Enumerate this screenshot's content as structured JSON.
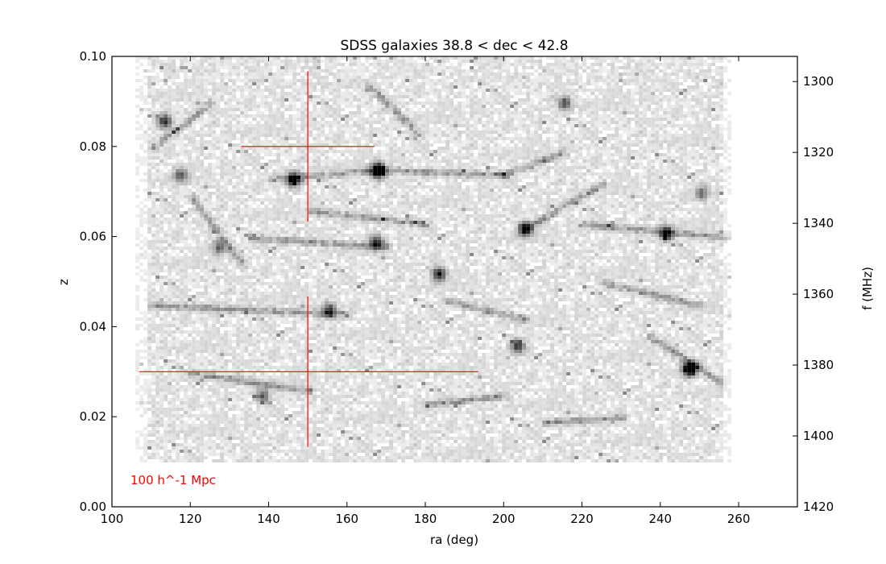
{
  "chart_data": {
    "type": "heatmap",
    "title": "SDSS galaxies 38.8 < dec < 42.8",
    "xlabel": "ra (deg)",
    "ylabel": "z",
    "y2label": "f (MHz)",
    "xlim": [
      100,
      275
    ],
    "ylim": [
      0.0,
      0.1
    ],
    "y2lim": [
      1420,
      1292.9
    ],
    "xticks": [
      100,
      120,
      140,
      160,
      180,
      200,
      220,
      240,
      260
    ],
    "yticks": [
      0.0,
      0.02,
      0.04,
      0.06,
      0.08,
      0.1
    ],
    "ytick_labels": [
      "0.00",
      "0.02",
      "0.04",
      "0.06",
      "0.08",
      "0.10"
    ],
    "y2ticks": [
      1300,
      1320,
      1340,
      1360,
      1380,
      1400,
      1420
    ],
    "colormap": "greys",
    "grid": false,
    "density_peaks": [
      {
        "ra": 167.5,
        "z": 0.075,
        "level": 1.0
      },
      {
        "ra": 247.0,
        "z": 0.031,
        "level": 1.0
      },
      {
        "ra": 146.0,
        "z": 0.073,
        "level": 0.7
      },
      {
        "ra": 205.0,
        "z": 0.062,
        "level": 0.7
      },
      {
        "ra": 183.0,
        "z": 0.052,
        "level": 0.6
      },
      {
        "ra": 241.0,
        "z": 0.061,
        "level": 0.6
      },
      {
        "ra": 167.0,
        "z": 0.059,
        "level": 0.5
      },
      {
        "ra": 113.0,
        "z": 0.086,
        "level": 0.5
      },
      {
        "ra": 203.0,
        "z": 0.036,
        "level": 0.5
      },
      {
        "ra": 155.0,
        "z": 0.044,
        "level": 0.5
      },
      {
        "ra": 117.0,
        "z": 0.074,
        "level": 0.4
      },
      {
        "ra": 127.0,
        "z": 0.058,
        "level": 0.4
      },
      {
        "ra": 138.0,
        "z": 0.025,
        "level": 0.4
      },
      {
        "ra": 215.0,
        "z": 0.09,
        "level": 0.4
      },
      {
        "ra": 250.0,
        "z": 0.07,
        "level": 0.35
      }
    ],
    "filaments": [
      {
        "from": [
          140,
          0.073
        ],
        "to": [
          168,
          0.075
        ]
      },
      {
        "from": [
          168,
          0.075
        ],
        "to": [
          200,
          0.074
        ]
      },
      {
        "from": [
          200,
          0.074
        ],
        "to": [
          215,
          0.079
        ]
      },
      {
        "from": [
          205,
          0.062
        ],
        "to": [
          225,
          0.072
        ]
      },
      {
        "from": [
          120,
          0.069
        ],
        "to": [
          133,
          0.054
        ]
      },
      {
        "from": [
          150,
          0.066
        ],
        "to": [
          180,
          0.063
        ]
      },
      {
        "from": [
          110,
          0.045
        ],
        "to": [
          160,
          0.043
        ]
      },
      {
        "from": [
          120,
          0.03
        ],
        "to": [
          150,
          0.026
        ]
      },
      {
        "from": [
          180,
          0.023
        ],
        "to": [
          200,
          0.025
        ]
      },
      {
        "from": [
          237,
          0.038
        ],
        "to": [
          255,
          0.028
        ]
      },
      {
        "from": [
          225,
          0.05
        ],
        "to": [
          250,
          0.045
        ]
      },
      {
        "from": [
          220,
          0.063
        ],
        "to": [
          258,
          0.06
        ]
      },
      {
        "from": [
          165,
          0.094
        ],
        "to": [
          178,
          0.083
        ]
      },
      {
        "from": [
          110,
          0.08
        ],
        "to": [
          125,
          0.09
        ]
      },
      {
        "from": [
          185,
          0.046
        ],
        "to": [
          205,
          0.042
        ]
      },
      {
        "from": [
          210,
          0.019
        ],
        "to": [
          230,
          0.02
        ]
      },
      {
        "from": [
          135,
          0.06
        ],
        "to": [
          170,
          0.058
        ]
      }
    ],
    "scale_crosses": [
      {
        "center": [
          150,
          0.08
        ],
        "h_range": [
          133,
          167
        ],
        "v_range": [
          0.0633,
          0.0967
        ]
      },
      {
        "center": [
          150,
          0.03
        ],
        "h_range": [
          107,
          193.5
        ],
        "v_range": [
          0.0133,
          0.0467
        ]
      }
    ],
    "annotation": "100 h^-1 Mpc",
    "colors": {
      "annotation": "#ff0000",
      "cross": "#ff0000",
      "axes": "#000000"
    }
  }
}
